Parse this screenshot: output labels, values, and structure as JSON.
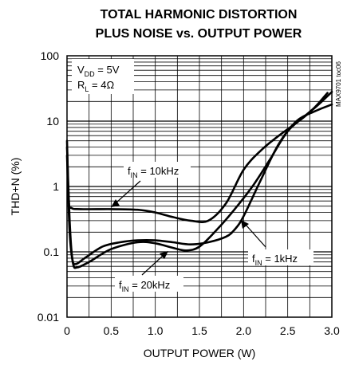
{
  "chart_data": {
    "type": "line",
    "title_line1": "TOTAL HARMONIC DISTORTION",
    "title_line2": "PLUS NOISE vs. OUTPUT POWER",
    "xlabel": "OUTPUT POWER (W)",
    "ylabel": "THD+N (%)",
    "xlim": [
      0,
      3.0
    ],
    "ylim": [
      0.01,
      100
    ],
    "y_scale": "log",
    "grid": true,
    "x_ticks": [
      "0",
      "0.5",
      "1.0",
      "1.5",
      "2.0",
      "2.5",
      "3.0"
    ],
    "y_ticks": [
      "0.01",
      "0.1",
      "1",
      "10",
      "100"
    ],
    "conditions": {
      "vdd_main": "V",
      "vdd_sub": "DD",
      "vdd_rest": " = 5V",
      "rl_main": "R",
      "rl_sub": "L",
      "rl_rest": " = 4Ω"
    },
    "side_note": "MAX9701 toc06",
    "series": [
      {
        "label_main": "f",
        "label_sub": "IN",
        "label_rest": " = 10kHz",
        "points": [
          [
            0.0,
            5.0
          ],
          [
            0.02,
            0.6
          ],
          [
            0.05,
            0.47
          ],
          [
            0.15,
            0.45
          ],
          [
            0.5,
            0.45
          ],
          [
            0.8,
            0.44
          ],
          [
            1.0,
            0.4
          ],
          [
            1.2,
            0.34
          ],
          [
            1.4,
            0.3
          ],
          [
            1.6,
            0.3
          ],
          [
            1.8,
            0.55
          ],
          [
            2.0,
            1.8
          ],
          [
            2.2,
            3.6
          ],
          [
            2.4,
            6.0
          ],
          [
            2.6,
            9.5
          ],
          [
            2.8,
            16
          ],
          [
            2.95,
            27
          ]
        ]
      },
      {
        "label_main": "f",
        "label_sub": "IN",
        "label_rest": " = 1kHz",
        "points": [
          [
            0.0,
            4.0
          ],
          [
            0.03,
            0.3
          ],
          [
            0.06,
            0.08
          ],
          [
            0.1,
            0.065
          ],
          [
            0.2,
            0.08
          ],
          [
            0.4,
            0.12
          ],
          [
            0.6,
            0.14
          ],
          [
            0.8,
            0.15
          ],
          [
            1.0,
            0.15
          ],
          [
            1.2,
            0.14
          ],
          [
            1.4,
            0.13
          ],
          [
            1.6,
            0.14
          ],
          [
            1.8,
            0.17
          ],
          [
            1.9,
            0.22
          ],
          [
            2.0,
            0.35
          ],
          [
            2.2,
            1.3
          ],
          [
            2.4,
            4.5
          ],
          [
            2.6,
            10.0
          ],
          [
            2.8,
            14.0
          ],
          [
            3.0,
            18.0
          ]
        ]
      },
      {
        "label_main": "f",
        "label_sub": "IN",
        "label_rest": " = 20kHz",
        "points": [
          [
            0.0,
            3.0
          ],
          [
            0.03,
            0.2
          ],
          [
            0.07,
            0.065
          ],
          [
            0.12,
            0.058
          ],
          [
            0.25,
            0.07
          ],
          [
            0.5,
            0.11
          ],
          [
            0.8,
            0.14
          ],
          [
            1.0,
            0.135
          ],
          [
            1.2,
            0.115
          ],
          [
            1.35,
            0.105
          ],
          [
            1.5,
            0.12
          ],
          [
            1.7,
            0.22
          ],
          [
            1.9,
            0.45
          ],
          [
            2.1,
            1.0
          ],
          [
            2.3,
            2.6
          ],
          [
            2.5,
            7.0
          ],
          [
            2.7,
            12.0
          ],
          [
            2.85,
            18.0
          ],
          [
            3.0,
            28.0
          ]
        ]
      }
    ]
  }
}
